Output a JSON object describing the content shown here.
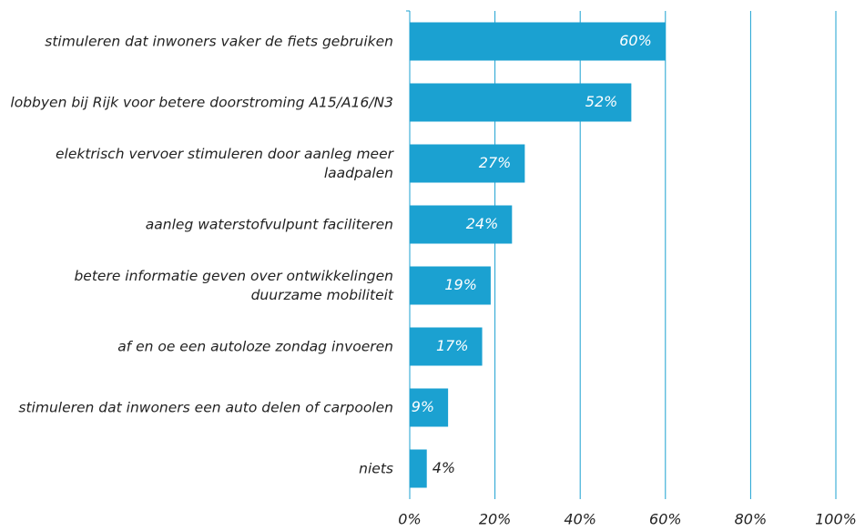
{
  "chart_data": {
    "type": "bar",
    "orientation": "horizontal",
    "categories": [
      "stimuleren dat inwoners vaker de fiets gebruiken",
      "lobbyen bij Rijk voor betere doorstroming A15/A16/N3",
      "elektrisch vervoer stimuleren door aanleg meer laadpalen",
      "aanleg waterstofvulpunt faciliteren",
      "betere informatie geven over ontwikkelingen duurzame mobiliteit",
      "af en oe een autoloze zondag invoeren",
      "stimuleren dat inwoners een auto delen of carpoolen",
      "niets"
    ],
    "values": [
      60,
      52,
      27,
      24,
      19,
      17,
      9,
      4
    ],
    "value_labels": [
      "60%",
      "52%",
      "27%",
      "24%",
      "19%",
      "17%",
      "9%",
      "4%"
    ],
    "color": "#1ba1d1",
    "xlim": [
      0,
      100
    ],
    "xticks": [
      {
        "value": 0,
        "label": "0%"
      },
      {
        "value": 20,
        "label": "20%"
      },
      {
        "value": 40,
        "label": "40%"
      },
      {
        "value": 60,
        "label": "60%"
      },
      {
        "value": 80,
        "label": "80%"
      },
      {
        "value": 100,
        "label": "100%"
      }
    ],
    "grid": true
  }
}
